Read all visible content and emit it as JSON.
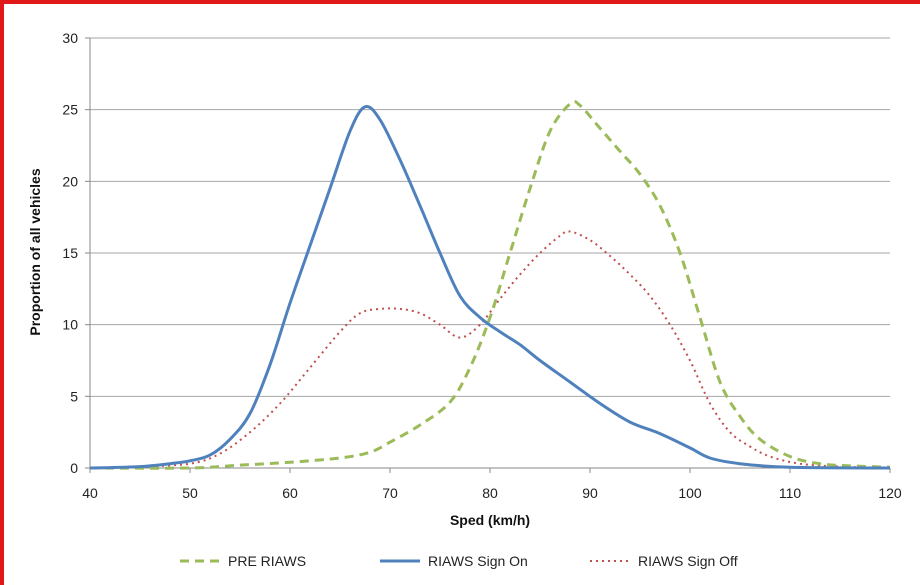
{
  "chart_data": {
    "type": "line",
    "xlabel": "Sped (km/h)",
    "ylabel": "Proportion of all vehicles",
    "xlim": [
      40,
      120
    ],
    "ylim": [
      0,
      30
    ],
    "x_ticks": [
      "40",
      "50",
      "60",
      "70",
      "80",
      "90",
      "100",
      "110",
      "120"
    ],
    "y_ticks": [
      "0",
      "5",
      "10",
      "15",
      "20",
      "25",
      "30"
    ],
    "grid": "horizontal",
    "legend_position": "bottom",
    "series": [
      {
        "name": "PRE RIAWS",
        "color": "#9bbb59",
        "dash": "dashed",
        "points": [
          [
            40,
            0
          ],
          [
            50,
            0
          ],
          [
            55,
            0.2
          ],
          [
            60,
            0.4
          ],
          [
            65,
            0.7
          ],
          [
            68,
            1.1
          ],
          [
            70,
            1.8
          ],
          [
            73,
            3
          ],
          [
            76,
            4.6
          ],
          [
            78,
            7
          ],
          [
            80,
            10.5
          ],
          [
            82,
            15
          ],
          [
            84,
            19.5
          ],
          [
            86,
            23.5
          ],
          [
            88,
            25.4
          ],
          [
            89,
            25.3
          ],
          [
            91,
            23.7
          ],
          [
            93,
            22.1
          ],
          [
            95,
            20.5
          ],
          [
            97,
            18.3
          ],
          [
            99,
            15
          ],
          [
            101,
            10.5
          ],
          [
            103,
            6
          ],
          [
            105,
            3.6
          ],
          [
            107,
            2
          ],
          [
            110,
            0.8
          ],
          [
            113,
            0.3
          ],
          [
            116,
            0.15
          ],
          [
            120,
            0.05
          ]
        ]
      },
      {
        "name": "RIAWS Sign On",
        "color": "#4f81bd",
        "dash": "solid",
        "points": [
          [
            40,
            0
          ],
          [
            45,
            0.1
          ],
          [
            48,
            0.3
          ],
          [
            50,
            0.5
          ],
          [
            52,
            0.9
          ],
          [
            54,
            2
          ],
          [
            56,
            3.8
          ],
          [
            58,
            7.2
          ],
          [
            60,
            11.5
          ],
          [
            62,
            15.5
          ],
          [
            64,
            19.5
          ],
          [
            66,
            23.5
          ],
          [
            67.5,
            25.2
          ],
          [
            69,
            24.3
          ],
          [
            71,
            21.5
          ],
          [
            73,
            18.3
          ],
          [
            75,
            15
          ],
          [
            77,
            12
          ],
          [
            79,
            10.5
          ],
          [
            81,
            9.5
          ],
          [
            83,
            8.6
          ],
          [
            85,
            7.5
          ],
          [
            88,
            6
          ],
          [
            91,
            4.5
          ],
          [
            94,
            3.2
          ],
          [
            97,
            2.4
          ],
          [
            100,
            1.4
          ],
          [
            102,
            0.7
          ],
          [
            105,
            0.3
          ],
          [
            110,
            0.05
          ],
          [
            120,
            0
          ]
        ]
      },
      {
        "name": "RIAWS Sign Off",
        "color": "#c0504d",
        "dash": "dotted",
        "points": [
          [
            40,
            0
          ],
          [
            45,
            0.1
          ],
          [
            50,
            0.3
          ],
          [
            53,
            1
          ],
          [
            56,
            2.5
          ],
          [
            59,
            4.5
          ],
          [
            62,
            7
          ],
          [
            65,
            9.5
          ],
          [
            67,
            10.8
          ],
          [
            69,
            11.1
          ],
          [
            71,
            11.1
          ],
          [
            73,
            10.8
          ],
          [
            75,
            10
          ],
          [
            77,
            9.1
          ],
          [
            79,
            10
          ],
          [
            81,
            11.8
          ],
          [
            83,
            13.5
          ],
          [
            85,
            15
          ],
          [
            87,
            16.2
          ],
          [
            88,
            16.5
          ],
          [
            90,
            15.9
          ],
          [
            92,
            14.8
          ],
          [
            94,
            13.5
          ],
          [
            96,
            12
          ],
          [
            98,
            10
          ],
          [
            100,
            7.5
          ],
          [
            102,
            4.5
          ],
          [
            104,
            2.5
          ],
          [
            106,
            1.5
          ],
          [
            108,
            0.8
          ],
          [
            111,
            0.3
          ],
          [
            115,
            0.1
          ],
          [
            120,
            0
          ]
        ]
      }
    ]
  }
}
